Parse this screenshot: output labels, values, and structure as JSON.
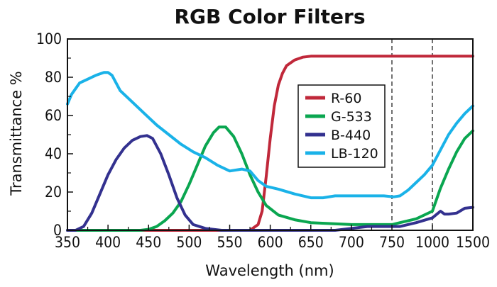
{
  "chart_data": {
    "type": "line",
    "title": "RGB Color Filters",
    "xlabel": "Wavelength (nm)",
    "ylabel": "Transmittance %",
    "x_ticks": [
      "350",
      "400",
      "450",
      "500",
      "550",
      "600",
      "650",
      "700",
      "750",
      "1000",
      "1500"
    ],
    "y_ticks": [
      "0",
      "20",
      "40",
      "60",
      "80",
      "100"
    ],
    "ylim": [
      0,
      100
    ],
    "x_scale_note": "piecewise",
    "dashed_gridlines_x": [
      750,
      1000
    ],
    "legend_position": "center-right",
    "series": [
      {
        "name": "R-60",
        "color": "#c0283a",
        "points": [
          [
            350,
            0
          ],
          [
            450,
            0
          ],
          [
            500,
            0
          ],
          [
            550,
            0
          ],
          [
            575,
            0
          ],
          [
            585,
            3
          ],
          [
            590,
            10
          ],
          [
            595,
            28
          ],
          [
            600,
            48
          ],
          [
            605,
            65
          ],
          [
            610,
            76
          ],
          [
            615,
            82
          ],
          [
            620,
            86
          ],
          [
            630,
            89
          ],
          [
            640,
            90.5
          ],
          [
            650,
            91
          ],
          [
            700,
            91
          ],
          [
            750,
            91
          ],
          [
            1000,
            91
          ],
          [
            1500,
            91
          ]
        ]
      },
      {
        "name": "G-533",
        "color": "#0aa650",
        "points": [
          [
            350,
            0
          ],
          [
            400,
            0
          ],
          [
            440,
            0
          ],
          [
            450,
            0.5
          ],
          [
            460,
            2
          ],
          [
            470,
            5
          ],
          [
            480,
            9
          ],
          [
            490,
            15
          ],
          [
            500,
            24
          ],
          [
            510,
            34
          ],
          [
            520,
            44
          ],
          [
            530,
            51
          ],
          [
            537,
            54
          ],
          [
            545,
            54
          ],
          [
            555,
            49
          ],
          [
            565,
            40
          ],
          [
            575,
            29
          ],
          [
            585,
            20
          ],
          [
            595,
            13
          ],
          [
            610,
            8
          ],
          [
            630,
            5.5
          ],
          [
            650,
            4
          ],
          [
            700,
            3
          ],
          [
            750,
            3
          ],
          [
            800,
            4
          ],
          [
            900,
            6
          ],
          [
            1000,
            10
          ],
          [
            1100,
            22
          ],
          [
            1200,
            32
          ],
          [
            1300,
            41
          ],
          [
            1400,
            48
          ],
          [
            1500,
            52
          ]
        ]
      },
      {
        "name": "B-440",
        "color": "#33318f",
        "points": [
          [
            350,
            0
          ],
          [
            360,
            0
          ],
          [
            370,
            2
          ],
          [
            380,
            9
          ],
          [
            390,
            19
          ],
          [
            400,
            29
          ],
          [
            410,
            37
          ],
          [
            420,
            43
          ],
          [
            430,
            47
          ],
          [
            440,
            49
          ],
          [
            448,
            49.5
          ],
          [
            455,
            48
          ],
          [
            465,
            40
          ],
          [
            475,
            29
          ],
          [
            485,
            17
          ],
          [
            495,
            8
          ],
          [
            505,
            3
          ],
          [
            520,
            1
          ],
          [
            540,
            0
          ],
          [
            600,
            0
          ],
          [
            650,
            0
          ],
          [
            680,
            0
          ],
          [
            700,
            1
          ],
          [
            720,
            2
          ],
          [
            750,
            2
          ],
          [
            800,
            2
          ],
          [
            900,
            4
          ],
          [
            1000,
            6.5
          ],
          [
            1100,
            10
          ],
          [
            1150,
            8.5
          ],
          [
            1200,
            8.5
          ],
          [
            1300,
            9
          ],
          [
            1400,
            11.5
          ],
          [
            1500,
            12
          ]
        ]
      },
      {
        "name": "LB-120",
        "color": "#1ab2e8",
        "points": [
          [
            350,
            66
          ],
          [
            355,
            71
          ],
          [
            360,
            74
          ],
          [
            365,
            77
          ],
          [
            375,
            79
          ],
          [
            385,
            81
          ],
          [
            395,
            82.5
          ],
          [
            400,
            82.5
          ],
          [
            405,
            81
          ],
          [
            415,
            73
          ],
          [
            430,
            67
          ],
          [
            445,
            61
          ],
          [
            460,
            55
          ],
          [
            475,
            50
          ],
          [
            490,
            45
          ],
          [
            505,
            41
          ],
          [
            520,
            38
          ],
          [
            535,
            34
          ],
          [
            550,
            31
          ],
          [
            565,
            32
          ],
          [
            575,
            31
          ],
          [
            585,
            26
          ],
          [
            595,
            23
          ],
          [
            610,
            21.5
          ],
          [
            630,
            19
          ],
          [
            650,
            17
          ],
          [
            665,
            17
          ],
          [
            680,
            18
          ],
          [
            700,
            18
          ],
          [
            720,
            18
          ],
          [
            740,
            18
          ],
          [
            760,
            17.5
          ],
          [
            800,
            18
          ],
          [
            850,
            21
          ],
          [
            900,
            25
          ],
          [
            950,
            29
          ],
          [
            1000,
            34
          ],
          [
            1100,
            42
          ],
          [
            1200,
            50
          ],
          [
            1300,
            56
          ],
          [
            1400,
            61
          ],
          [
            1500,
            65
          ]
        ]
      }
    ]
  }
}
